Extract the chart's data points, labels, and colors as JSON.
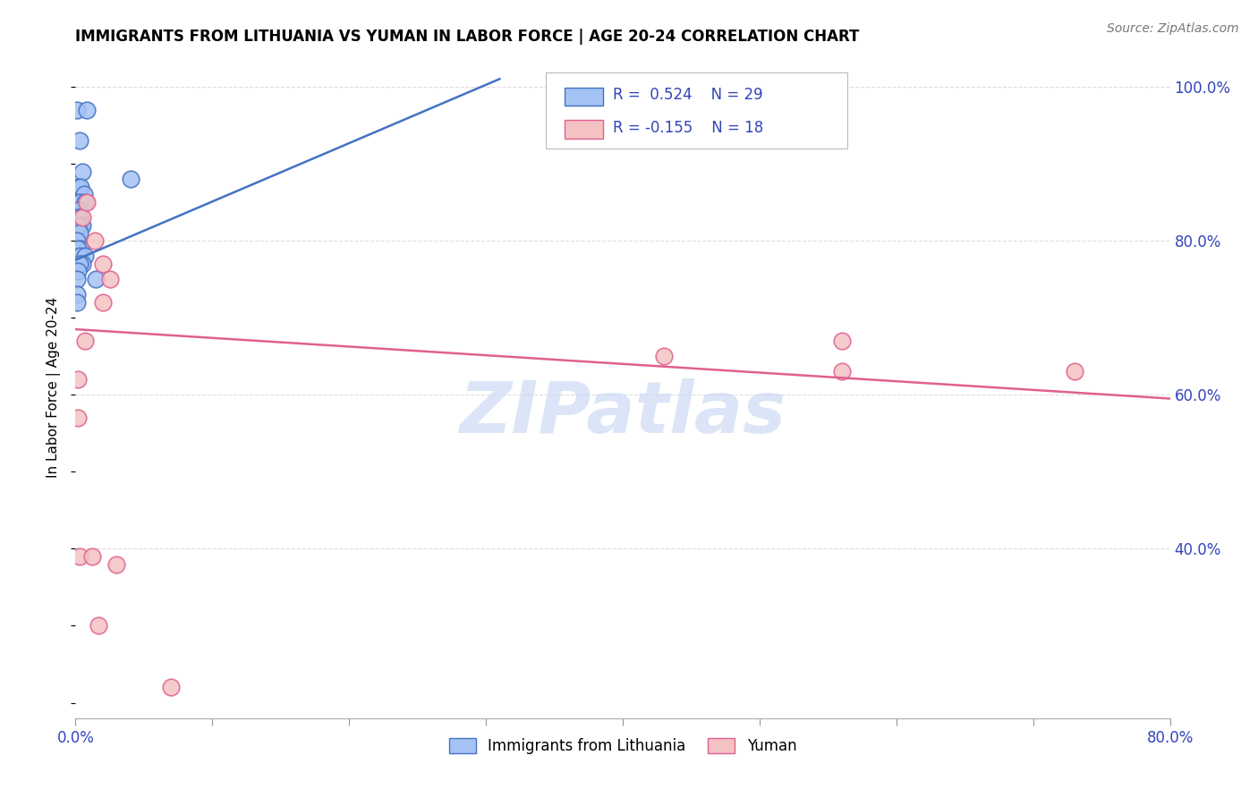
{
  "title": "IMMIGRANTS FROM LITHUANIA VS YUMAN IN LABOR FORCE | AGE 20-24 CORRELATION CHART",
  "source": "Source: ZipAtlas.com",
  "ylabel": "In Labor Force | Age 20-24",
  "xlim": [
    0.0,
    0.8
  ],
  "ylim": [
    0.18,
    1.04
  ],
  "xticks": [
    0.0,
    0.1,
    0.2,
    0.3,
    0.4,
    0.5,
    0.6,
    0.7,
    0.8
  ],
  "xticklabels": [
    "0.0%",
    "",
    "",
    "",
    "",
    "",
    "",
    "",
    "80.0%"
  ],
  "yticks_right": [
    1.0,
    0.8,
    0.6,
    0.4
  ],
  "ytick_labels_right": [
    "100.0%",
    "80.0%",
    "60.0%",
    "40.0%"
  ],
  "blue_line_color": "#4472c4",
  "pink_line_color": "#e06090",
  "blue_marker_facecolor": "#a4c2f4",
  "blue_marker_edgecolor": "#4472c4",
  "pink_marker_facecolor": "#f4c2c2",
  "pink_marker_edgecolor": "#e06090",
  "watermark_color": "#ccdaf5",
  "blue_scatter_x": [
    0.001,
    0.008,
    0.003,
    0.005,
    0.002,
    0.004,
    0.006,
    0.003,
    0.007,
    0.002,
    0.001,
    0.003,
    0.004,
    0.005,
    0.002,
    0.003,
    0.001,
    0.004,
    0.002,
    0.003,
    0.007,
    0.005,
    0.003,
    0.002,
    0.001,
    0.015,
    0.04,
    0.001,
    0.001
  ],
  "blue_scatter_y": [
    0.97,
    0.97,
    0.93,
    0.89,
    0.87,
    0.87,
    0.86,
    0.85,
    0.85,
    0.84,
    0.83,
    0.83,
    0.82,
    0.82,
    0.82,
    0.81,
    0.8,
    0.79,
    0.79,
    0.78,
    0.78,
    0.77,
    0.77,
    0.76,
    0.75,
    0.75,
    0.88,
    0.73,
    0.72
  ],
  "pink_scatter_x": [
    0.002,
    0.005,
    0.008,
    0.014,
    0.02,
    0.025,
    0.02,
    0.007,
    0.002,
    0.003,
    0.012,
    0.017,
    0.56,
    0.73,
    0.43,
    0.56,
    0.03,
    0.07
  ],
  "pink_scatter_y": [
    0.57,
    0.83,
    0.85,
    0.8,
    0.77,
    0.75,
    0.72,
    0.67,
    0.62,
    0.39,
    0.39,
    0.3,
    0.67,
    0.63,
    0.65,
    0.63,
    0.38,
    0.22
  ],
  "blue_trendline_x": [
    0.0,
    0.31
  ],
  "blue_trendline_y": [
    0.775,
    1.01
  ],
  "pink_trendline_x": [
    0.0,
    0.8
  ],
  "pink_trendline_y": [
    0.685,
    0.595
  ],
  "legend_items": [
    {
      "label": "R =  0.524    N = 29",
      "fc": "#a4c2f4",
      "ec": "#4472c4"
    },
    {
      "label": "R = -0.155    N = 18",
      "fc": "#f4c2c2",
      "ec": "#e06090"
    }
  ],
  "bottom_legend": [
    {
      "label": "Immigrants from Lithuania",
      "fc": "#a4c2f4",
      "ec": "#4472c4"
    },
    {
      "label": "Yuman",
      "fc": "#f4c2c2",
      "ec": "#e06090"
    }
  ]
}
